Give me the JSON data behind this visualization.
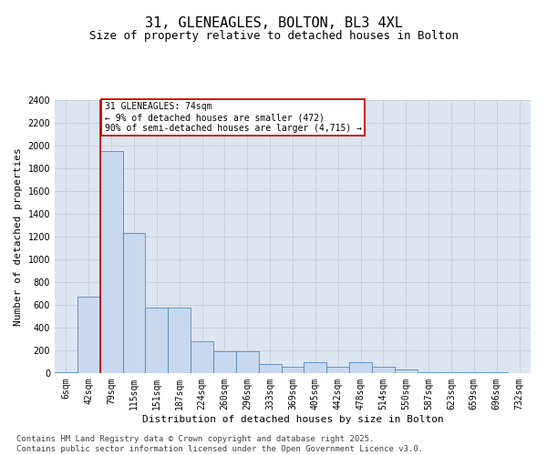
{
  "title": "31, GLENEAGLES, BOLTON, BL3 4XL",
  "subtitle": "Size of property relative to detached houses in Bolton",
  "xlabel": "Distribution of detached houses by size in Bolton",
  "ylabel": "Number of detached properties",
  "bar_categories": [
    "6sqm",
    "42sqm",
    "79sqm",
    "115sqm",
    "151sqm",
    "187sqm",
    "224sqm",
    "260sqm",
    "296sqm",
    "333sqm",
    "369sqm",
    "405sqm",
    "442sqm",
    "478sqm",
    "514sqm",
    "550sqm",
    "587sqm",
    "623sqm",
    "659sqm",
    "696sqm",
    "732sqm"
  ],
  "bar_values": [
    5,
    670,
    1950,
    1230,
    575,
    575,
    280,
    195,
    195,
    80,
    55,
    100,
    55,
    100,
    55,
    30,
    10,
    5,
    5,
    5,
    0
  ],
  "bar_color": "#c8d8ee",
  "bar_edge_color": "#5588bb",
  "ylim": [
    0,
    2400
  ],
  "yticks": [
    0,
    200,
    400,
    600,
    800,
    1000,
    1200,
    1400,
    1600,
    1800,
    2000,
    2200,
    2400
  ],
  "grid_color": "#c8d0dc",
  "bg_color": "#dde5f0",
  "vline_bin_index": 2,
  "vline_color": "#cc0000",
  "annotation_text": "31 GLENEAGLES: 74sqm\n← 9% of detached houses are smaller (472)\n90% of semi-detached houses are larger (4,715) →",
  "annotation_box_color": "#cc0000",
  "footnote": "Contains HM Land Registry data © Crown copyright and database right 2025.\nContains public sector information licensed under the Open Government Licence v3.0.",
  "title_fontsize": 11,
  "subtitle_fontsize": 9,
  "axis_label_fontsize": 8,
  "tick_fontsize": 7,
  "annotation_fontsize": 7,
  "footnote_fontsize": 6.5
}
